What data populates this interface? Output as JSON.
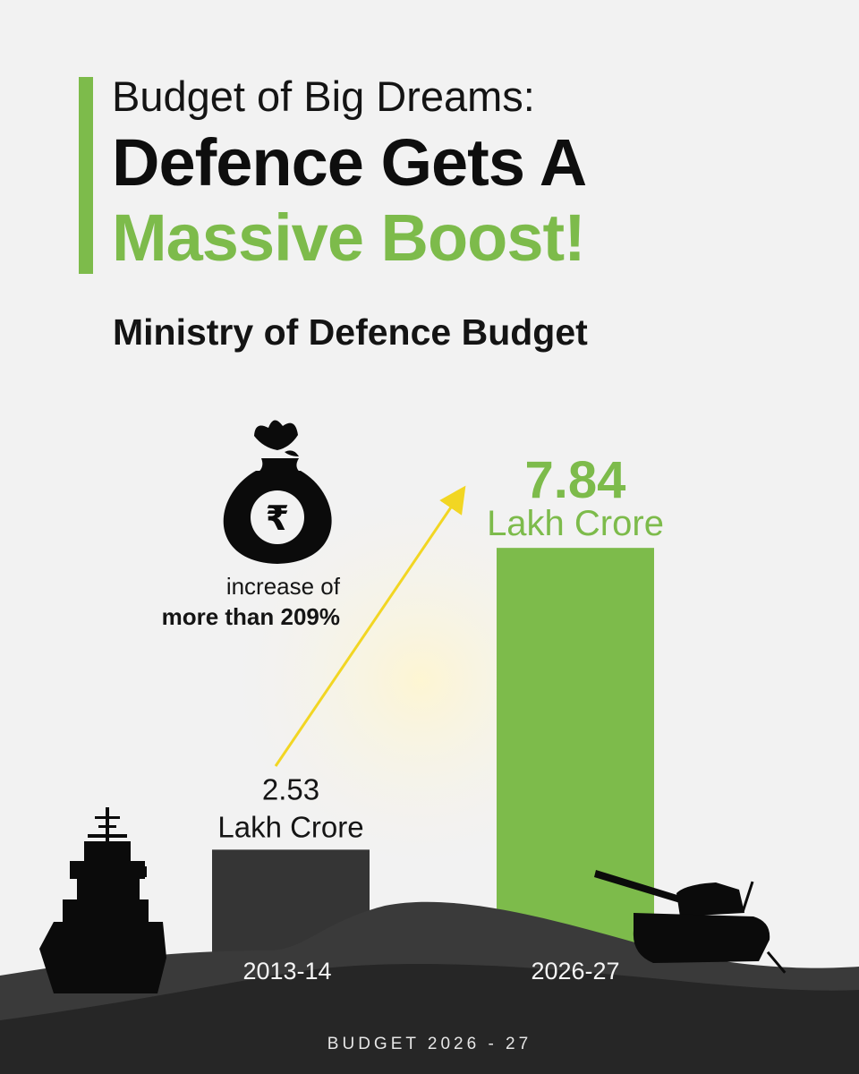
{
  "header": {
    "kicker": "Budget of Big Dreams:",
    "title_line1": "Defence Gets A",
    "title_line2": "Massive Boost!"
  },
  "subtitle": "Ministry of Defence Budget",
  "callout": {
    "icon": "rupee-money-bag-icon",
    "line1": "increase of",
    "line2": "more than 209%"
  },
  "colors": {
    "accent": "#7dbb4b",
    "dark_bar": "#353535",
    "arrow": "#f2d623",
    "background": "#f2f2f2"
  },
  "chart_data": {
    "type": "bar",
    "title": "Ministry of Defence Budget",
    "categories": [
      "2013-14",
      "2026-27"
    ],
    "values": [
      2.53,
      7.84
    ],
    "value_labels": [
      "2.53",
      "7.84"
    ],
    "unit": "Lakh Crore",
    "ylim": [
      0,
      8.4
    ],
    "xlabel": "",
    "ylabel": ""
  },
  "footer": "BUDGET 2026 - 27"
}
